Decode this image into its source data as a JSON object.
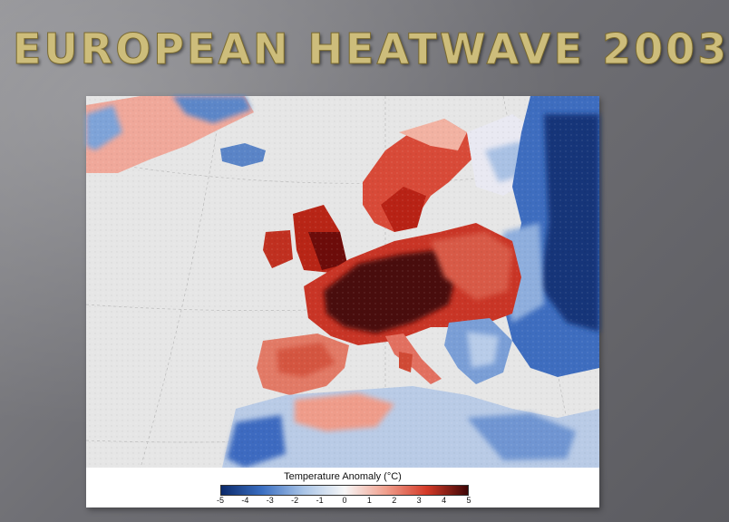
{
  "slide": {
    "title": "EUROPEAN HEATWAVE 2003"
  },
  "map": {
    "legend_title": "Temperature Anomaly (°C)",
    "scale_min": -5,
    "scale_max": 5,
    "scale_ticks": [
      "-5",
      "-4",
      "-3",
      "-2",
      "-1",
      "0",
      "1",
      "2",
      "3",
      "4",
      "5"
    ],
    "colors": {
      "cold_extreme": "#0b2a6b",
      "cold": "#3b6fc2",
      "cool": "#a9c4e6",
      "neutral": "#f7f7f7",
      "warm": "#f0a08e",
      "hot": "#d43a28",
      "hot_extreme": "#3e0606",
      "ocean": "#e8e8e8"
    }
  }
}
